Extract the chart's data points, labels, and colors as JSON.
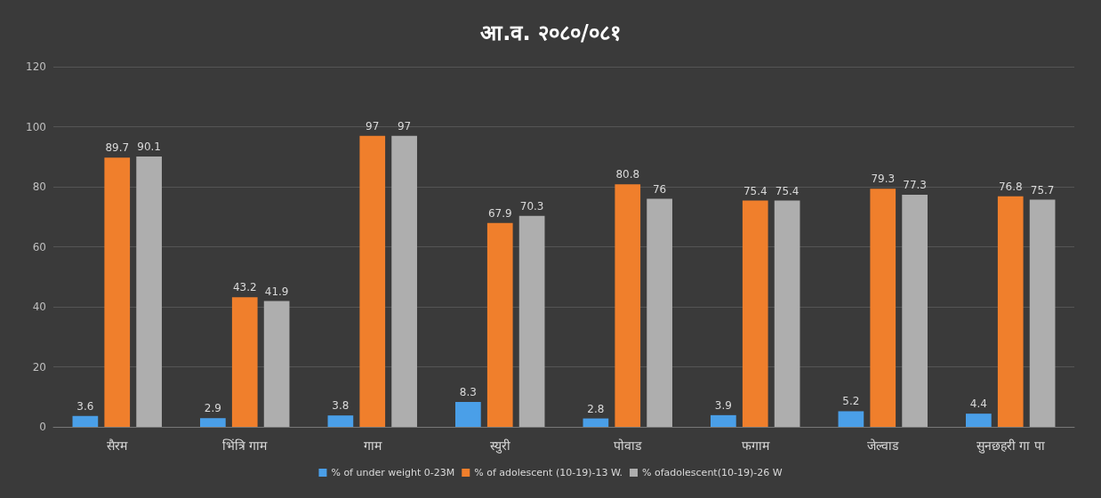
{
  "chart_data": {
    "type": "bar",
    "title": "आ.व. २०८०/०८१",
    "categories": [
      "सैरम",
      "भिंत्रि गाम",
      "गाम",
      "स्युरी",
      "पोवाड",
      "फगाम",
      "जेल्वाड",
      "सुनछहरी गा पा"
    ],
    "series": [
      {
        "name": "% of under weight 0-23M",
        "color": "#4a9fe8",
        "values": [
          3.6,
          2.9,
          3.8,
          8.3,
          2.8,
          3.9,
          5.2,
          4.4
        ]
      },
      {
        "name": "% of adolescent (10-19)-13 W.",
        "color": "#f07f2c",
        "values": [
          89.7,
          43.2,
          97,
          67.9,
          80.8,
          75.4,
          79.3,
          76.8
        ]
      },
      {
        "name": "% ofadolescent(10-19)-26 W",
        "color": "#aeaeae",
        "values": [
          90.1,
          41.9,
          97,
          70.3,
          76,
          75.4,
          77.3,
          75.7
        ]
      }
    ],
    "ylim": [
      0,
      120
    ],
    "yticks": [
      0,
      20,
      40,
      60,
      80,
      100,
      120
    ],
    "grid": "y",
    "legend": "bottom",
    "data_labels": true
  }
}
